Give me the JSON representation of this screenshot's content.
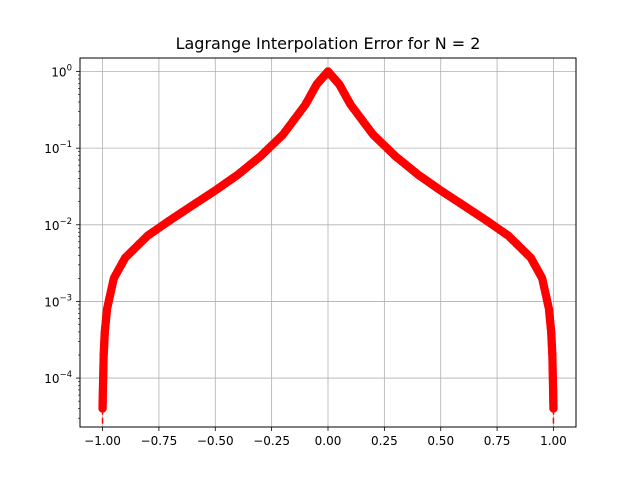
{
  "chart_data": {
    "type": "line",
    "title": "Lagrange Interpolation Error for N = 2",
    "xlabel": "",
    "ylabel": "",
    "xscale": "linear",
    "yscale": "log",
    "xlim": [
      -1.1,
      1.1
    ],
    "ylim": [
      2.3e-05,
      1.5
    ],
    "grid": true,
    "x_ticks": [
      -1.0,
      -0.75,
      -0.5,
      -0.25,
      0.0,
      0.25,
      0.5,
      0.75,
      1.0
    ],
    "x_tick_labels": [
      "−1.00",
      "−0.75",
      "−0.50",
      "−0.25",
      "0.00",
      "0.25",
      "0.50",
      "0.75",
      "1.00"
    ],
    "y_ticks": [
      0.0001,
      0.001,
      0.01,
      0.1,
      1
    ],
    "y_tick_labels": [
      {
        "base": "10",
        "exp": "−4"
      },
      {
        "base": "10",
        "exp": "−3"
      },
      {
        "base": "10",
        "exp": "−2"
      },
      {
        "base": "10",
        "exp": "−1"
      },
      {
        "base": "10",
        "exp": "0"
      }
    ],
    "series": [
      {
        "color": "#ff0000",
        "line_style": "dashed",
        "marker": "circle",
        "points": [
          {
            "x": -1.0,
            "y": 4e-05
          },
          {
            "x": -0.998,
            "y": 8e-05
          },
          {
            "x": -0.995,
            "y": 0.0002
          },
          {
            "x": -0.99,
            "y": 0.0004
          },
          {
            "x": -0.98,
            "y": 0.0008
          },
          {
            "x": -0.95,
            "y": 0.002
          },
          {
            "x": -0.9,
            "y": 0.0037
          },
          {
            "x": -0.8,
            "y": 0.0072
          },
          {
            "x": -0.7,
            "y": 0.0115
          },
          {
            "x": -0.6,
            "y": 0.018
          },
          {
            "x": -0.5,
            "y": 0.028
          },
          {
            "x": -0.4,
            "y": 0.045
          },
          {
            "x": -0.3,
            "y": 0.078
          },
          {
            "x": -0.2,
            "y": 0.15
          },
          {
            "x": -0.1,
            "y": 0.37
          },
          {
            "x": -0.05,
            "y": 0.68
          },
          {
            "x": 0.0,
            "y": 1.0
          },
          {
            "x": 0.05,
            "y": 0.68
          },
          {
            "x": 0.1,
            "y": 0.37
          },
          {
            "x": 0.2,
            "y": 0.15
          },
          {
            "x": 0.3,
            "y": 0.078
          },
          {
            "x": 0.4,
            "y": 0.045
          },
          {
            "x": 0.5,
            "y": 0.028
          },
          {
            "x": 0.6,
            "y": 0.018
          },
          {
            "x": 0.7,
            "y": 0.0115
          },
          {
            "x": 0.8,
            "y": 0.0072
          },
          {
            "x": 0.9,
            "y": 0.0037
          },
          {
            "x": 0.95,
            "y": 0.002
          },
          {
            "x": 0.98,
            "y": 0.0008
          },
          {
            "x": 0.99,
            "y": 0.0004
          },
          {
            "x": 0.995,
            "y": 0.0002
          },
          {
            "x": 0.998,
            "y": 8e-05
          },
          {
            "x": 1.0,
            "y": 4e-05
          }
        ]
      }
    ]
  }
}
